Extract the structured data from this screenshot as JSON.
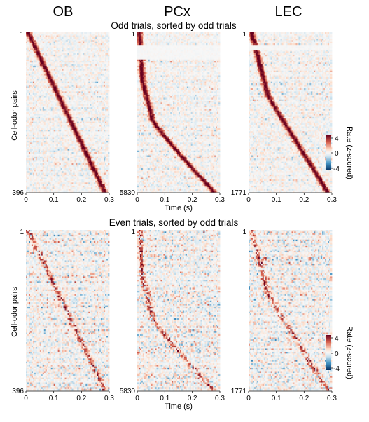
{
  "column_titles": [
    "OB",
    "PCx",
    "LEC"
  ],
  "row_titles": [
    "Odd trials, sorted by odd trials",
    "Even trials, sorted by odd trials"
  ],
  "y_axis_label": "Cell-odor pairs",
  "x_axis_label": "Time (s)",
  "colorbar": {
    "label": "Rate (z-scored)",
    "ticks": [
      "4",
      "0",
      "-4"
    ]
  },
  "colors": {
    "high": "#8b0000",
    "mid": "#f7f7f7",
    "low": "#053061"
  },
  "chart_data": [
    {
      "type": "heatmap",
      "panel": "odd-OB",
      "region": "OB",
      "trials": "odd",
      "rows": 396,
      "y_ticks": [
        "1",
        "396"
      ],
      "x_ticks": [
        "0",
        "0.1",
        "0.2",
        "0.3"
      ],
      "xlim": [
        0,
        0.3
      ],
      "zlim": [
        -4,
        4
      ],
      "peak_start_s": 0.0,
      "peak_end_s": 0.3
    },
    {
      "type": "heatmap",
      "panel": "odd-PCx",
      "region": "PCx",
      "trials": "odd",
      "rows": 5830,
      "y_ticks": [
        "1",
        "5830"
      ],
      "x_ticks": [
        "0",
        "0.1",
        "0.2",
        "0.3"
      ],
      "xlim": [
        0,
        0.3
      ],
      "zlim": [
        -4,
        4
      ],
      "peak_start_s": 0.0,
      "peak_end_s": 0.3
    },
    {
      "type": "heatmap",
      "panel": "odd-LEC",
      "region": "LEC",
      "trials": "odd",
      "rows": 1771,
      "y_ticks": [
        "1",
        "1771"
      ],
      "x_ticks": [
        "0",
        "0.1",
        "0.2",
        "0.3"
      ],
      "xlim": [
        0,
        0.3
      ],
      "zlim": [
        -4,
        4
      ],
      "peak_start_s": 0.0,
      "peak_end_s": 0.3
    },
    {
      "type": "heatmap",
      "panel": "even-OB",
      "region": "OB",
      "trials": "even",
      "rows": 396,
      "y_ticks": [
        "1",
        "396"
      ],
      "x_ticks": [
        "0",
        "0.1",
        "0.2",
        "0.3"
      ],
      "xlim": [
        0,
        0.3
      ],
      "zlim": [
        -4,
        4
      ]
    },
    {
      "type": "heatmap",
      "panel": "even-PCx",
      "region": "PCx",
      "trials": "even",
      "rows": 5830,
      "y_ticks": [
        "1",
        "5830"
      ],
      "x_ticks": [
        "0",
        "0.1",
        "0.2",
        "0.3"
      ],
      "xlim": [
        0,
        0.3
      ],
      "zlim": [
        -4,
        4
      ]
    },
    {
      "type": "heatmap",
      "panel": "even-LEC",
      "region": "LEC",
      "trials": "even",
      "rows": 1771,
      "y_ticks": [
        "1",
        "1771"
      ],
      "x_ticks": [
        "0",
        "0.1",
        "0.2",
        "0.3"
      ],
      "xlim": [
        0,
        0.3
      ],
      "zlim": [
        -4,
        4
      ]
    }
  ]
}
